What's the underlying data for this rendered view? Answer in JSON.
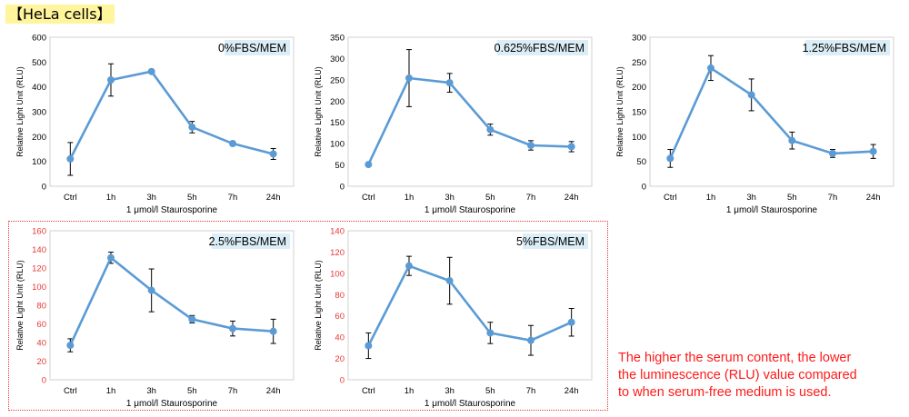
{
  "header": {
    "label": "【HeLa cells】"
  },
  "note": {
    "line1": "The higher the serum content, the lower",
    "line2": "the luminescence (RLU) value compared",
    "line3": "to when serum-free medium is used."
  },
  "colors": {
    "series": "#5b9bd5",
    "error_bar": "#000000",
    "highlight_axis": "#e53935",
    "tag_bg": "#dbeef7"
  },
  "chart_data": [
    {
      "type": "line",
      "title": "0%FBS/MEM",
      "xlabel": "1 μmol/l Staurosporine",
      "ylabel": "Relative Light Unit (RLU)",
      "categories": [
        "Ctrl",
        "1h",
        "3h",
        "5h",
        "7h",
        "24h"
      ],
      "values": [
        110,
        428,
        462,
        238,
        172,
        130
      ],
      "errors": [
        66,
        65,
        0,
        23,
        0,
        22
      ],
      "ylim": [
        0,
        600
      ],
      "yticks": [
        0,
        100,
        200,
        300,
        400,
        500,
        600
      ],
      "ytick_labels": [
        "0",
        "100",
        "200",
        "300",
        "400",
        "500",
        "600"
      ],
      "highlight": false
    },
    {
      "type": "line",
      "title": "0.625%FBS/MEM",
      "xlabel": "1 μmol/l Staurosporine",
      "ylabel": "Relative Light Unit (RLU)",
      "categories": [
        "Ctrl",
        "1h",
        "3h",
        "5h",
        "7h",
        "24h"
      ],
      "values": [
        51,
        254,
        243,
        133,
        96,
        93
      ],
      "errors": [
        0,
        67,
        22,
        13,
        11,
        12
      ],
      "ylim": [
        0,
        350
      ],
      "yticks": [
        0,
        50,
        100,
        150,
        200,
        250,
        300,
        350
      ],
      "ytick_labels": [
        "0",
        "50",
        "100",
        "150",
        "200",
        "250",
        "300",
        "350"
      ],
      "highlight": false
    },
    {
      "type": "line",
      "title": "1.25%FBS/MEM",
      "xlabel": "1 μmol/l Staurosporine",
      "ylabel": "Relative Light Unit (RLU)",
      "categories": [
        "Ctrl",
        "1h",
        "3h",
        "5h",
        "7h",
        "24h"
      ],
      "values": [
        56,
        238,
        184,
        92,
        66,
        70
      ],
      "errors": [
        18,
        25,
        32,
        17,
        8,
        14
      ],
      "ylim": [
        0,
        300
      ],
      "yticks": [
        0,
        50,
        100,
        150,
        200,
        250,
        300
      ],
      "ytick_labels": [
        "0",
        "50",
        "100",
        "150",
        "200",
        "250",
        "300"
      ],
      "highlight": false
    },
    {
      "type": "line",
      "title": "2.5%FBS/MEM",
      "xlabel": "1 μmol/l Staurosporine",
      "ylabel": "Relative Light Unit (RLU)",
      "categories": [
        "Ctrl",
        "1h",
        "3h",
        "5h",
        "7h",
        "24h"
      ],
      "values": [
        37,
        131,
        96,
        65,
        55,
        52
      ],
      "errors": [
        7,
        6,
        23,
        4,
        8,
        13
      ],
      "ylim": [
        0,
        160
      ],
      "yticks": [
        0,
        20,
        40,
        60,
        80,
        100,
        120,
        140,
        160
      ],
      "ytick_labels": [
        "0",
        "20",
        "40",
        "60",
        "80",
        "100",
        "120",
        "140",
        "160"
      ],
      "highlight": true
    },
    {
      "type": "line",
      "title": "5%FBS/MEM",
      "xlabel": "1 μmol/l Staurosporine",
      "ylabel": "Relative Light Unit (RLU)",
      "categories": [
        "Ctrl",
        "1h",
        "3h",
        "5h",
        "7h",
        "24h"
      ],
      "values": [
        32,
        107,
        93,
        44,
        37,
        54
      ],
      "errors": [
        12,
        9,
        22,
        10,
        14,
        13
      ],
      "ylim": [
        0,
        140
      ],
      "yticks": [
        0,
        20,
        40,
        60,
        80,
        100,
        120,
        140
      ],
      "ytick_labels": [
        "0",
        "20",
        "40",
        "60",
        "80",
        "100",
        "120",
        "140"
      ],
      "highlight": true
    }
  ]
}
